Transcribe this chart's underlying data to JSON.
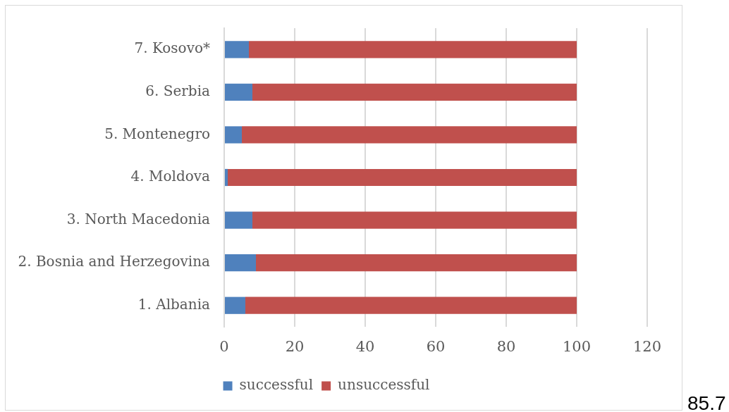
{
  "chart_data": {
    "type": "bar",
    "orientation": "horizontal",
    "stacked": true,
    "categories": [
      "7. Kosovo*",
      "6. Serbia",
      "5. Montenegro",
      "4. Moldova",
      "3. North Macedonia",
      "2. Bosnia and Herzegovina",
      "1. Albania"
    ],
    "series": [
      {
        "name": "successful",
        "color": "#4f81bd",
        "values": [
          7,
          8,
          5,
          1,
          8,
          9,
          6
        ]
      },
      {
        "name": "unsuccessful",
        "color": "#c0504d",
        "values": [
          93,
          92,
          95,
          99,
          92,
          91,
          94
        ]
      }
    ],
    "xlim": [
      0,
      120
    ],
    "xticks": [
      0,
      20,
      40,
      60,
      80,
      100,
      120
    ],
    "grid": "x",
    "legend": "bottom",
    "annotations": [
      "85.7"
    ]
  }
}
